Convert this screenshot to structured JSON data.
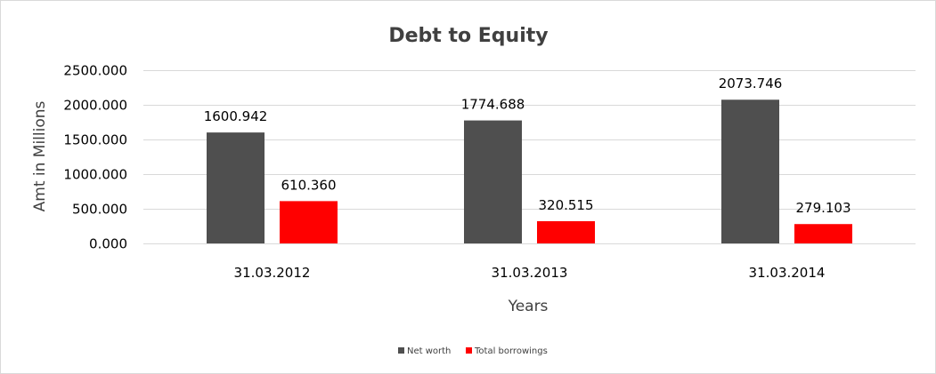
{
  "chart_data": {
    "type": "bar",
    "title": "Debt to Equity",
    "xlabel": "Years",
    "ylabel": "Amt in Millions",
    "categories": [
      "31.03.2012",
      "31.03.2013",
      "31.03.2014"
    ],
    "series": [
      {
        "name": "Net worth",
        "values": [
          1600.942,
          1774.688,
          2073.746
        ],
        "color": "#4f4f4f",
        "labels": [
          "1600.942",
          "1774.688",
          "2073.746"
        ]
      },
      {
        "name": "Total borrowings",
        "values": [
          610.36,
          320.515,
          279.103
        ],
        "color": "#ff0000",
        "labels": [
          "610.360",
          "320.515",
          "279.103"
        ]
      }
    ],
    "ylim": [
      0,
      2500
    ],
    "yticks": [
      0,
      500,
      1000,
      1500,
      2000,
      2500
    ],
    "ytick_labels": [
      "0.000",
      "500.000",
      "1000.000",
      "1500.000",
      "2000.000",
      "2500.000"
    ],
    "grid": true,
    "legend_position": "bottom"
  }
}
